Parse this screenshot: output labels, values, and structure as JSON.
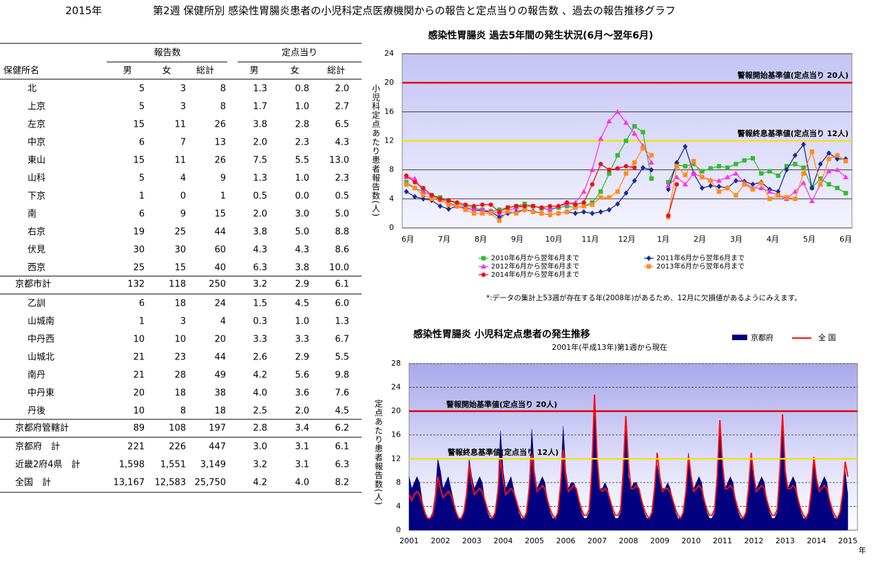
{
  "header": {
    "year": "2015年",
    "title": "第2週 保健所別 感染性胃腸炎患者の小児科定点医療機関からの報告と定点当りの報告数 、過去の報告推移グラフ"
  },
  "table": {
    "group_headers": [
      "報告数",
      "定点当り"
    ],
    "columns": [
      "保健所名",
      "男",
      "女",
      "総計",
      "男",
      "女",
      "総計"
    ],
    "rows": [
      [
        "北",
        "5",
        "3",
        "8",
        "1.3",
        "0.8",
        "2.0"
      ],
      [
        "上京",
        "5",
        "3",
        "8",
        "1.7",
        "1.0",
        "2.7"
      ],
      [
        "左京",
        "15",
        "11",
        "26",
        "3.8",
        "2.8",
        "6.5"
      ],
      [
        "中京",
        "6",
        "7",
        "13",
        "2.0",
        "2.3",
        "4.3"
      ],
      [
        "東山",
        "15",
        "11",
        "26",
        "7.5",
        "5.5",
        "13.0"
      ],
      [
        "山科",
        "5",
        "4",
        "9",
        "1.3",
        "1.0",
        "2.3"
      ],
      [
        "下京",
        "1",
        "0",
        "1",
        "0.5",
        "0.0",
        "0.5"
      ],
      [
        "南",
        "6",
        "9",
        "15",
        "2.0",
        "3.0",
        "5.0"
      ],
      [
        "右京",
        "19",
        "25",
        "44",
        "3.8",
        "5.0",
        "8.8"
      ],
      [
        "伏見",
        "30",
        "30",
        "60",
        "4.3",
        "4.3",
        "8.6"
      ],
      [
        "西京",
        "25",
        "15",
        "40",
        "6.3",
        "3.8",
        "10.0"
      ],
      [
        "京都市計",
        "132",
        "118",
        "250",
        "3.2",
        "2.9",
        "6.1"
      ],
      [
        "乙訓",
        "6",
        "18",
        "24",
        "1.5",
        "4.5",
        "6.0"
      ],
      [
        "山城南",
        "1",
        "3",
        "4",
        "0.3",
        "1.0",
        "1.3"
      ],
      [
        "中丹西",
        "10",
        "10",
        "20",
        "3.3",
        "3.3",
        "6.7"
      ],
      [
        "山城北",
        "21",
        "23",
        "44",
        "2.6",
        "2.9",
        "5.5"
      ],
      [
        "南丹",
        "21",
        "28",
        "49",
        "4.2",
        "5.6",
        "9.8"
      ],
      [
        "中丹東",
        "20",
        "18",
        "38",
        "4.0",
        "3.6",
        "7.6"
      ],
      [
        "丹後",
        "10",
        "8",
        "18",
        "2.5",
        "2.0",
        "4.5"
      ],
      [
        "京都府管轄計",
        "89",
        "108",
        "197",
        "2.8",
        "3.4",
        "6.2"
      ],
      [
        "京都府　計",
        "221",
        "226",
        "447",
        "3.0",
        "3.1",
        "6.1"
      ],
      [
        "近畿2府4県　計",
        "1,598",
        "1,551",
        "3,149",
        "3.2",
        "3.1",
        "6.3"
      ],
      [
        "全国　計",
        "13,167",
        "12,583",
        "25,750",
        "4.2",
        "4.0",
        "8.2"
      ]
    ]
  },
  "chart_data": [
    {
      "type": "line",
      "title": "感染性胃腸炎 過去5年間の発生状況(6月～翌年6月)",
      "y_label": "小児科定点あたり患者報告数(人)",
      "xtick_labels": [
        "6月",
        "7月",
        "8月",
        "9月",
        "10月",
        "11月",
        "12月",
        "1月",
        "2月",
        "3月",
        "4月",
        "5月",
        "6月"
      ],
      "ylim": [
        0,
        24
      ],
      "yticks": [
        0,
        4,
        8,
        12,
        16,
        20,
        24
      ],
      "grid": true,
      "reference_lines": [
        {
          "value": 20,
          "label": "警報開始基準値(定点当り 20人)",
          "color": "#e00000"
        },
        {
          "value": 12,
          "label": "警報終息基準値(定点当り 12人)",
          "color": "#f0e020"
        }
      ],
      "note": "*:データの集計上53週が存在する年(2008年)があるため、12月に欠損値があるようにみえます。",
      "series": [
        {
          "name": "2010年6月から翌年6月まで",
          "color": "#33bb33",
          "marker": "square",
          "values": [
            6.3,
            5.5,
            5.0,
            4.5,
            4.2,
            3.8,
            3.3,
            3.0,
            2.8,
            2.5,
            2.3,
            2.5,
            2.8,
            3.0,
            3.3,
            3.0,
            2.7,
            2.5,
            2.8,
            3.0,
            2.8,
            3.0,
            3.5,
            5.0,
            7.5,
            10.0,
            12.0,
            14.0,
            13.2,
            6.8,
            null,
            6.3,
            8.7,
            8.5,
            8.8,
            7.8,
            8.2,
            8.5,
            8.3,
            8.8,
            9.3,
            9.6,
            7.5,
            7.8,
            7.2,
            8.5,
            8.8,
            8.3,
            5.5,
            6.8,
            6.0,
            5.5,
            4.8
          ]
        },
        {
          "name": "2011年6月から翌年6月まで",
          "color": "#1a2a9a",
          "marker": "diamond",
          "values": [
            5.0,
            4.3,
            4.0,
            3.8,
            3.0,
            2.6,
            3.0,
            2.7,
            2.5,
            2.3,
            2.2,
            1.5,
            2.0,
            2.2,
            2.5,
            2.3,
            2.0,
            1.8,
            2.0,
            2.2,
            2.0,
            2.2,
            2.0,
            2.2,
            2.5,
            3.3,
            4.8,
            6.5,
            8.3,
            8.0,
            null,
            5.3,
            9.0,
            11.2,
            7.5,
            5.5,
            5.8,
            5.7,
            5.5,
            6.5,
            6.4,
            6.0,
            6.3,
            5.3,
            5.0,
            8.0,
            10.0,
            11.5,
            5.5,
            8.8,
            10.3,
            9.5,
            9.5
          ]
        },
        {
          "name": "2012年6月から翌年6月まで",
          "color": "#ff33dd",
          "marker": "triangle",
          "values": [
            7.0,
            6.8,
            5.0,
            4.5,
            4.0,
            3.5,
            3.0,
            2.8,
            2.5,
            2.5,
            2.3,
            2.0,
            2.3,
            2.8,
            3.0,
            3.0,
            2.8,
            2.5,
            3.0,
            3.3,
            3.5,
            5.0,
            8.0,
            12.3,
            14.7,
            16.0,
            14.5,
            13.0,
            11.3,
            9.0,
            null,
            5.8,
            7.0,
            6.0,
            7.5,
            7.0,
            6.6,
            6.5,
            7.0,
            7.5,
            6.2,
            5.5,
            5.5,
            5.0,
            4.5,
            4.0,
            5.0,
            6.2,
            3.7,
            6.0,
            7.8,
            8.0,
            7.0
          ]
        },
        {
          "name": "2013年6月から翌年6月まで",
          "color": "#ff8c1a",
          "marker": "square",
          "values": [
            6.0,
            5.5,
            4.5,
            4.0,
            3.8,
            3.2,
            3.0,
            2.5,
            2.0,
            2.0,
            2.0,
            1.0,
            2.3,
            2.0,
            2.5,
            2.2,
            2.0,
            1.8,
            2.0,
            2.2,
            2.8,
            3.0,
            3.2,
            4.2,
            4.2,
            5.0,
            7.5,
            9.0,
            11.0,
            10.0,
            null,
            1.5,
            8.5,
            7.3,
            9.2,
            7.0,
            6.5,
            5.0,
            5.5,
            4.5,
            6.0,
            5.3,
            6.2,
            4.0,
            4.5,
            4.2,
            4.0,
            7.5,
            10.5,
            6.0,
            9.5,
            10.0,
            9.2
          ]
        },
        {
          "name": "2014年6月から翌年6月まで",
          "color": "#ee1111",
          "marker": "circle",
          "values": [
            7.2,
            6.3,
            5.5,
            4.5,
            4.0,
            3.8,
            3.5,
            3.2,
            3.0,
            3.2,
            3.2,
            2.2,
            2.8,
            3.0,
            3.0,
            3.0,
            2.8,
            3.0,
            3.0,
            3.5,
            3.2,
            3.5,
            6.0,
            8.8,
            8.0,
            8.2,
            8.5,
            8.3,
            null,
            null,
            null,
            1.7,
            6.0,
            null,
            null,
            null,
            null,
            null,
            null,
            null,
            null,
            null,
            null,
            null,
            null,
            null,
            null,
            null,
            null,
            null,
            null,
            null,
            null
          ]
        }
      ]
    },
    {
      "type": "area",
      "title": "感染性胃腸炎 小児科定点患者の発生推移",
      "subtitle": "2001年(平成13年)第1週から現在",
      "y_label": "定点あたり患者報告数(人)",
      "x_unit": "年",
      "xtick_labels": [
        "2001",
        "2002",
        "2003",
        "2004",
        "2005",
        "2006",
        "2007",
        "2008",
        "2009",
        "2010",
        "2011",
        "2012",
        "2013",
        "2014",
        "2015"
      ],
      "ylim": [
        0,
        28
      ],
      "yticks": [
        0,
        4,
        8,
        12,
        16,
        20,
        24,
        28
      ],
      "grid": true,
      "reference_lines": [
        {
          "value": 20,
          "label": "警報開始基準値(定点当り 20人)",
          "color": "#e00000"
        },
        {
          "value": 12,
          "label": "警報終息基準値(定点当り 12人)",
          "color": "#f0e020"
        }
      ],
      "series": [
        {
          "name": "京都府",
          "color": "#000080",
          "style": "area",
          "values": [
            9,
            7,
            8,
            9,
            8,
            5,
            3,
            2,
            2,
            3,
            6,
            12,
            10,
            7,
            8,
            9,
            7,
            5,
            3,
            2,
            2,
            3,
            6,
            12,
            9,
            7,
            8,
            9,
            8,
            5,
            3,
            2,
            2,
            3,
            7,
            16.7,
            10,
            7,
            8,
            9,
            7,
            5,
            3,
            2,
            2,
            3,
            8,
            17,
            10,
            7,
            8,
            9,
            8,
            5,
            3,
            2,
            2,
            3,
            8,
            17.5,
            10,
            7,
            8,
            8,
            7,
            5,
            3,
            2,
            2,
            3,
            10,
            21,
            11,
            7,
            7,
            8,
            7,
            5,
            3,
            2,
            2,
            3,
            9,
            17,
            9,
            7,
            8,
            8,
            7,
            5,
            3,
            2,
            2,
            3,
            7,
            11,
            8,
            7,
            7,
            8,
            7,
            5,
            3,
            2,
            2,
            3,
            7,
            13,
            9,
            7,
            8,
            9,
            8,
            5,
            3,
            2,
            2,
            3,
            9,
            17,
            10,
            7,
            8,
            9,
            8,
            5,
            3,
            2,
            2,
            3,
            7,
            12,
            9,
            7,
            8,
            9,
            8,
            5,
            3,
            2,
            2,
            3,
            9,
            18,
            10,
            7,
            8,
            9,
            8,
            5,
            3,
            2,
            2,
            3,
            7,
            12,
            9,
            7,
            8,
            9,
            8,
            5,
            3,
            2,
            2,
            3,
            6,
            10,
            6
          ]
        },
        {
          "name": "全 国",
          "color": "#ff1010",
          "style": "line",
          "values": [
            6,
            5,
            6,
            6.5,
            6,
            4.5,
            3,
            2,
            2,
            2.5,
            5,
            9,
            7,
            5.5,
            6,
            6.5,
            6,
            4.5,
            3,
            2,
            2,
            3,
            6,
            11,
            8,
            6,
            6.5,
            7,
            6.5,
            5,
            3.5,
            2.5,
            2,
            3,
            6.5,
            12,
            8.5,
            6,
            6.5,
            7,
            6.5,
            5,
            3.5,
            2.5,
            2,
            3,
            7,
            13,
            9,
            6.5,
            7,
            7.5,
            7,
            5,
            3.5,
            2.5,
            2,
            3,
            7.5,
            13.5,
            9,
            6.5,
            7,
            7.5,
            7,
            5,
            3.5,
            2.5,
            2.5,
            3.5,
            10,
            22.8,
            12,
            7,
            6.5,
            7,
            6.5,
            5,
            3.5,
            2.5,
            2.5,
            3.5,
            10,
            19.2,
            11,
            7,
            7,
            7.5,
            7,
            5,
            3.5,
            2.5,
            2,
            3,
            7,
            13,
            9,
            6.5,
            7,
            7,
            6.5,
            5,
            3.5,
            2.5,
            2,
            3,
            6.5,
            12.5,
            9,
            6.5,
            7,
            7.5,
            7,
            5,
            3.5,
            2.5,
            2.5,
            3.5,
            9,
            18.5,
            11,
            7,
            7,
            7.5,
            7,
            5,
            3.5,
            2.5,
            2,
            3,
            7,
            13,
            9,
            6.5,
            7,
            7.5,
            7,
            5,
            3.5,
            2.5,
            2.5,
            3.5,
            10,
            19.5,
            10,
            7,
            7,
            7.5,
            7,
            5,
            3.5,
            2.5,
            2,
            3,
            6.5,
            12.3,
            8.5,
            6.5,
            7,
            7.5,
            7,
            5,
            3.5,
            2.5,
            2,
            3,
            6,
            11.5,
            9
          ]
        }
      ]
    }
  ]
}
